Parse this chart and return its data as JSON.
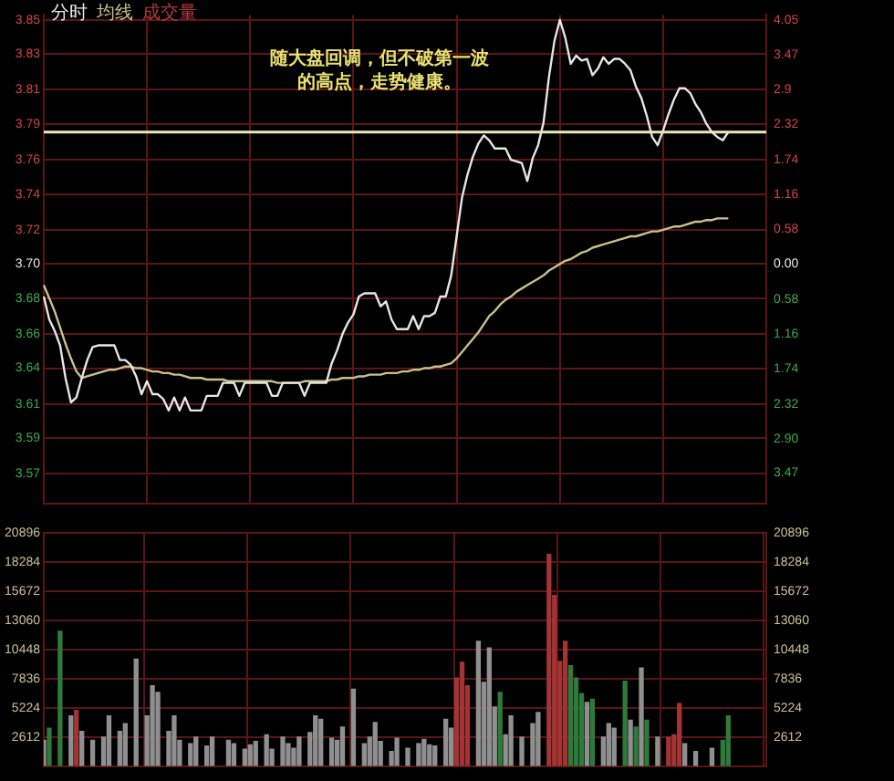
{
  "chart_data": [
    {
      "type": "line",
      "categories": [
        null,
        null,
        null,
        null,
        null,
        null,
        null,
        null,
        null,
        null,
        null,
        null,
        null,
        null,
        null,
        null,
        null,
        null,
        null,
        null,
        null,
        null,
        null,
        null,
        null,
        null,
        null,
        null,
        null,
        null,
        null,
        null,
        null,
        null,
        null,
        null,
        null,
        null,
        null,
        null,
        null,
        null,
        null,
        null,
        null,
        null,
        null,
        null,
        null,
        null,
        null,
        null,
        null,
        null,
        null,
        null,
        null,
        null,
        null,
        null,
        null,
        null,
        null,
        null,
        null,
        null,
        null,
        null,
        null,
        null,
        null,
        null,
        null,
        null,
        null,
        null,
        null,
        null,
        null,
        null,
        null,
        null,
        null,
        null,
        null,
        null,
        null,
        null,
        null,
        null,
        null,
        null,
        null,
        null,
        null,
        null,
        null,
        null,
        null,
        null,
        null,
        null,
        null,
        null,
        null,
        null,
        null,
        null,
        null,
        null,
        null,
        null,
        null,
        null,
        null,
        null,
        null,
        null,
        null,
        null,
        null,
        null,
        null,
        null,
        null,
        null,
        null,
        null,
        null,
        null,
        null,
        null,
        null,
        null
      ],
      "ylim": [
        3.553,
        3.853
      ],
      "yticks": [
        {
          "value": 3.85,
          "label": "3.85"
        },
        {
          "value": 3.829,
          "label": "3.83"
        },
        {
          "value": 3.807,
          "label": "3.81"
        },
        {
          "value": 3.786,
          "label": "3.79"
        },
        {
          "value": 3.764,
          "label": "3.76"
        },
        {
          "value": 3.743,
          "label": "3.74"
        },
        {
          "value": 3.721,
          "label": "3.72"
        },
        {
          "value": 3.7,
          "label": "3.70"
        },
        {
          "value": 3.679,
          "label": "3.68"
        },
        {
          "value": 3.657,
          "label": "3.66"
        },
        {
          "value": 3.636,
          "label": "3.64"
        },
        {
          "value": 3.614,
          "label": "3.61"
        },
        {
          "value": 3.593,
          "label": "3.59"
        },
        {
          "value": 3.571,
          "label": "3.57"
        }
      ],
      "y2lim": [
        -3.97,
        4.14
      ],
      "y2ticks": [
        4.05,
        3.47,
        2.9,
        2.32,
        1.74,
        1.16,
        0.58,
        {
          "value": 0,
          "label": "0.00"
        },
        {
          "value": -0.58,
          "label": "0.58"
        },
        {
          "value": -1.16,
          "label": "1.16"
        },
        {
          "value": -1.74,
          "label": "1.74"
        },
        {
          "value": -2.32,
          "label": "2.32"
        },
        {
          "value": -2.9,
          "label": "2.90"
        },
        {
          "value": -3.47,
          "label": "3.47"
        }
      ],
      "series": [
        {
          "name": "分时",
          "color": "#e6e6e6",
          "values": [
            3.68,
            3.666,
            3.659,
            3.65,
            3.63,
            3.615,
            3.618,
            3.63,
            3.641,
            3.649,
            3.65,
            3.65,
            3.65,
            3.65,
            3.641,
            3.641,
            3.638,
            3.631,
            3.62,
            3.628,
            3.62,
            3.62,
            3.617,
            3.61,
            3.618,
            3.61,
            3.618,
            3.61,
            3.61,
            3.61,
            3.619,
            3.619,
            3.619,
            3.627,
            3.627,
            3.627,
            3.619,
            3.627,
            3.627,
            3.627,
            3.627,
            3.627,
            3.619,
            3.619,
            3.627,
            3.627,
            3.627,
            3.627,
            3.619,
            3.627,
            3.627,
            3.627,
            3.627,
            3.639,
            3.647,
            3.657,
            3.664,
            3.669,
            3.68,
            3.682,
            3.682,
            3.682,
            3.674,
            3.677,
            3.666,
            3.66,
            3.66,
            3.66,
            3.668,
            3.66,
            3.668,
            3.668,
            3.67,
            3.68,
            3.68,
            3.693,
            3.717,
            3.741,
            3.755,
            3.766,
            3.774,
            3.779,
            3.776,
            3.771,
            3.771,
            3.771,
            3.764,
            3.763,
            3.762,
            3.751,
            3.765,
            3.773,
            3.787,
            3.815,
            3.837,
            3.85,
            3.839,
            3.823,
            3.828,
            3.825,
            3.826,
            3.816,
            3.82,
            3.827,
            3.823,
            3.826,
            3.826,
            3.823,
            3.819,
            3.809,
            3.802,
            3.791,
            3.778,
            3.773,
            3.782,
            3.792,
            3.801,
            3.808,
            3.808,
            3.805,
            3.798,
            3.793,
            3.786,
            3.781,
            3.778,
            3.776,
            3.781,
            null,
            null,
            null,
            null,
            null,
            null,
            null
          ]
        },
        {
          "name": "均线",
          "color": "#c9c08a",
          "values": [
            3.687,
            3.679,
            3.671,
            3.661,
            3.651,
            3.642,
            3.634,
            3.63,
            3.631,
            3.632,
            3.633,
            3.634,
            3.635,
            3.635,
            3.636,
            3.637,
            3.637,
            3.636,
            3.636,
            3.635,
            3.634,
            3.634,
            3.633,
            3.633,
            3.632,
            3.632,
            3.631,
            3.63,
            3.63,
            3.63,
            3.629,
            3.629,
            3.629,
            3.629,
            3.628,
            3.628,
            3.628,
            3.628,
            3.628,
            3.628,
            3.628,
            3.628,
            3.628,
            3.627,
            3.627,
            3.627,
            3.627,
            3.627,
            3.628,
            3.628,
            3.628,
            3.628,
            3.628,
            3.629,
            3.629,
            3.63,
            3.63,
            3.63,
            3.631,
            3.631,
            3.632,
            3.632,
            3.632,
            3.633,
            3.633,
            3.633,
            3.634,
            3.634,
            3.635,
            3.635,
            3.636,
            3.636,
            3.637,
            3.637,
            3.638,
            3.639,
            3.642,
            3.646,
            3.65,
            3.654,
            3.658,
            3.663,
            3.668,
            3.671,
            3.675,
            3.678,
            3.68,
            3.683,
            3.685,
            3.687,
            3.689,
            3.691,
            3.693,
            3.696,
            3.698,
            3.7,
            3.702,
            3.703,
            3.705,
            3.707,
            3.708,
            3.71,
            3.711,
            3.712,
            3.713,
            3.714,
            3.715,
            3.716,
            3.717,
            3.717,
            3.718,
            3.719,
            3.72,
            3.72,
            3.721,
            3.722,
            3.723,
            3.723,
            3.724,
            3.725,
            3.726,
            3.726,
            3.727,
            3.727,
            3.728,
            3.728,
            3.728,
            null,
            null,
            null,
            null,
            null,
            null,
            null
          ]
        }
      ],
      "ref_lines": [
        {
          "axis": "y",
          "value": 3.781,
          "color": "#ece8b8"
        }
      ],
      "annotations": [
        "随大盘回调，但不破第一波的高点，走势健康。"
      ],
      "grid": true,
      "tick_labels": "y",
      "marker": "none",
      "line_style": "solid"
    },
    {
      "type": "bar",
      "categories": [
        null,
        null,
        null,
        null,
        null,
        null,
        null,
        null,
        null,
        null,
        null,
        null,
        null,
        null,
        null,
        null,
        null,
        null,
        null,
        null,
        null,
        null,
        null,
        null,
        null,
        null,
        null,
        null,
        null,
        null,
        null,
        null,
        null,
        null,
        null,
        null,
        null,
        null,
        null,
        null,
        null,
        null,
        null,
        null,
        null,
        null,
        null,
        null,
        null,
        null,
        null,
        null,
        null,
        null,
        null,
        null,
        null,
        null,
        null,
        null,
        null,
        null,
        null,
        null,
        null,
        null,
        null,
        null,
        null,
        null,
        null,
        null,
        null,
        null,
        null,
        null,
        null,
        null,
        null,
        null,
        null,
        null,
        null,
        null,
        null,
        null,
        null,
        null,
        null,
        null,
        null,
        null,
        null,
        null,
        null,
        null,
        null,
        null,
        null,
        null,
        null,
        null,
        null,
        null,
        null,
        null,
        null,
        null,
        null,
        null,
        null,
        null,
        null,
        null,
        null,
        null,
        null,
        null,
        null,
        null,
        null,
        null,
        null,
        null,
        null,
        null,
        null,
        null,
        null,
        null,
        null,
        null,
        null,
        null
      ],
      "ylim": [
        0,
        20896
      ],
      "yticks": [
        2612,
        5224,
        7836,
        10448,
        13060,
        15672,
        18284,
        20896
      ],
      "y2lim": [
        0,
        20896
      ],
      "y2ticks": [
        2612,
        5224,
        7836,
        10448,
        13060,
        15672,
        18284,
        20896
      ],
      "series": [
        {
          "name": "成交量",
          "color": "#b03a3a",
          "colors": [
            "#8f8f8f",
            "#2f7a3a",
            "#8f8f8f",
            "#2f7a3a",
            "#8f8f8f",
            "#8f8f8f",
            "#a33434",
            "#8f8f8f",
            "#8f8f8f",
            "#8f8f8f",
            "#8f8f8f",
            "#8f8f8f",
            "#8f8f8f",
            "#8f8f8f",
            "#8f8f8f",
            "#8f8f8f",
            "#8f8f8f",
            "#8f8f8f",
            "#8f8f8f",
            "#8f8f8f",
            "#8f8f8f",
            "#8f8f8f",
            "#8f8f8f",
            "#8f8f8f",
            "#8f8f8f",
            "#8f8f8f",
            "#8f8f8f",
            "#8f8f8f",
            "#8f8f8f",
            "#8f8f8f",
            "#8f8f8f",
            "#8f8f8f",
            "#8f8f8f",
            "#8f8f8f",
            "#8f8f8f",
            "#8f8f8f",
            "#8f8f8f",
            "#8f8f8f",
            "#8f8f8f",
            "#8f8f8f",
            "#8f8f8f",
            "#8f8f8f",
            "#8f8f8f",
            "#8f8f8f",
            "#8f8f8f",
            "#8f8f8f",
            "#8f8f8f",
            "#8f8f8f",
            "#8f8f8f",
            "#8f8f8f",
            "#8f8f8f",
            "#8f8f8f",
            "#8f8f8f",
            "#8f8f8f",
            "#8f8f8f",
            "#8f8f8f",
            "#8f8f8f",
            "#8f8f8f",
            "#8f8f8f",
            "#8f8f8f",
            "#8f8f8f",
            "#8f8f8f",
            "#8f8f8f",
            "#8f8f8f",
            "#8f8f8f",
            "#8f8f8f",
            "#8f8f8f",
            "#8f8f8f",
            "#8f8f8f",
            "#8f8f8f",
            "#8f8f8f",
            "#8f8f8f",
            "#8f8f8f",
            "#8f8f8f",
            "#8f8f8f",
            "#8f8f8f",
            "#a33434",
            "#a33434",
            "#a33434",
            "#8f8f8f",
            "#8f8f8f",
            "#8f8f8f",
            "#8f8f8f",
            "#8f8f8f",
            "#2f7a3a",
            "#8f8f8f",
            "#8f8f8f",
            "#8f8f8f",
            "#8f8f8f",
            "#8f8f8f",
            "#8f8f8f",
            "#8f8f8f",
            "#8f8f8f",
            "#a33434",
            "#a33434",
            "#a33434",
            "#a33434",
            "#2f7a3a",
            "#2f7a3a",
            "#2f7a3a",
            "#8f8f8f",
            "#2f7a3a",
            "#8f8f8f",
            "#8f8f8f",
            "#8f8f8f",
            "#8f8f8f",
            "#8f8f8f",
            "#2f7a3a",
            "#8f8f8f",
            "#2f7a3a",
            "#8f8f8f",
            "#2f7a3a",
            "#8f8f8f",
            "#8f8f8f",
            "#8f8f8f",
            "#a33434",
            "#a33434",
            "#a33434",
            "#8f8f8f",
            "#8f8f8f",
            "#8f8f8f",
            "#8f8f8f",
            "#8f8f8f",
            "#8f8f8f",
            "#8f8f8f",
            "#2f7a3a",
            "#2f7a3a",
            "#8f8f8f",
            "#8f8f8f",
            "#8f8f8f",
            "#8f8f8f",
            "#8f8f8f",
            "#8f8f8f",
            "#8f8f8f"
          ],
          "values": [
            2300,
            3400,
            null,
            12100,
            null,
            4500,
            5000,
            3100,
            null,
            2300,
            null,
            2600,
            4500,
            null,
            3100,
            3800,
            null,
            9600,
            null,
            4500,
            7200,
            6600,
            null,
            3100,
            4500,
            2300,
            null,
            2000,
            2600,
            null,
            1800,
            2600,
            null,
            null,
            2300,
            2000,
            null,
            1500,
            1900,
            2200,
            null,
            2800,
            1500,
            null,
            2600,
            2000,
            1600,
            2600,
            null,
            3000,
            4500,
            4200,
            null,
            2500,
            2300,
            3500,
            null,
            6900,
            null,
            2000,
            2600,
            3900,
            2200,
            null,
            1300,
            2500,
            null,
            1600,
            null,
            2000,
            2400,
            1900,
            1800,
            null,
            4200,
            3400,
            7900,
            9300,
            7200,
            null,
            11200,
            7500,
            10600,
            5300,
            6600,
            2800,
            4500,
            null,
            2600,
            null,
            3800,
            4800,
            null,
            19000,
            15300,
            9400,
            11200,
            9000,
            7900,
            6500,
            5700,
            6000,
            null,
            2600,
            3800,
            3400,
            null,
            7600,
            4100,
            3500,
            8800,
            4100,
            null,
            2600,
            null,
            2600,
            2800,
            5600,
            2000,
            null,
            1300,
            null,
            null,
            1600,
            null,
            2300,
            4500,
            null,
            null,
            null,
            null,
            null,
            null,
            null
          ]
        }
      ],
      "grid": true,
      "tick_labels": "y"
    }
  ]
}
